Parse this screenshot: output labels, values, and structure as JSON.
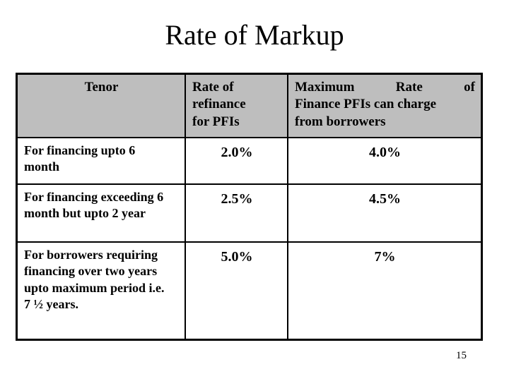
{
  "slide": {
    "title": "Rate of Markup",
    "page_number": "15"
  },
  "table": {
    "header": {
      "tenor": "Tenor",
      "refinance": "Rate of\nrefinance\nfor PFIs",
      "max_rate_lines": [
        "Maximum Rate of",
        "Finance PFIs can charge",
        "from borrowers"
      ]
    },
    "rows": [
      {
        "tenor": "For financing upto 6\nmonth",
        "refinance_rate": "2.0%",
        "max_rate": "4.0%"
      },
      {
        "tenor": "For financing exceeding 6\nmonth but upto 2 year",
        "refinance_rate": "2.5%",
        "max_rate": "4.5%"
      },
      {
        "tenor": "For borrowers requiring\nfinancing over two years\nupto maximum period i.e.\n7 ½ years.",
        "refinance_rate": "5.0%",
        "max_rate": "7%"
      }
    ]
  },
  "colors": {
    "background": "#FFFFFF",
    "header_bg": "#BEBEBE",
    "border": "#000000",
    "text": "#000000"
  }
}
